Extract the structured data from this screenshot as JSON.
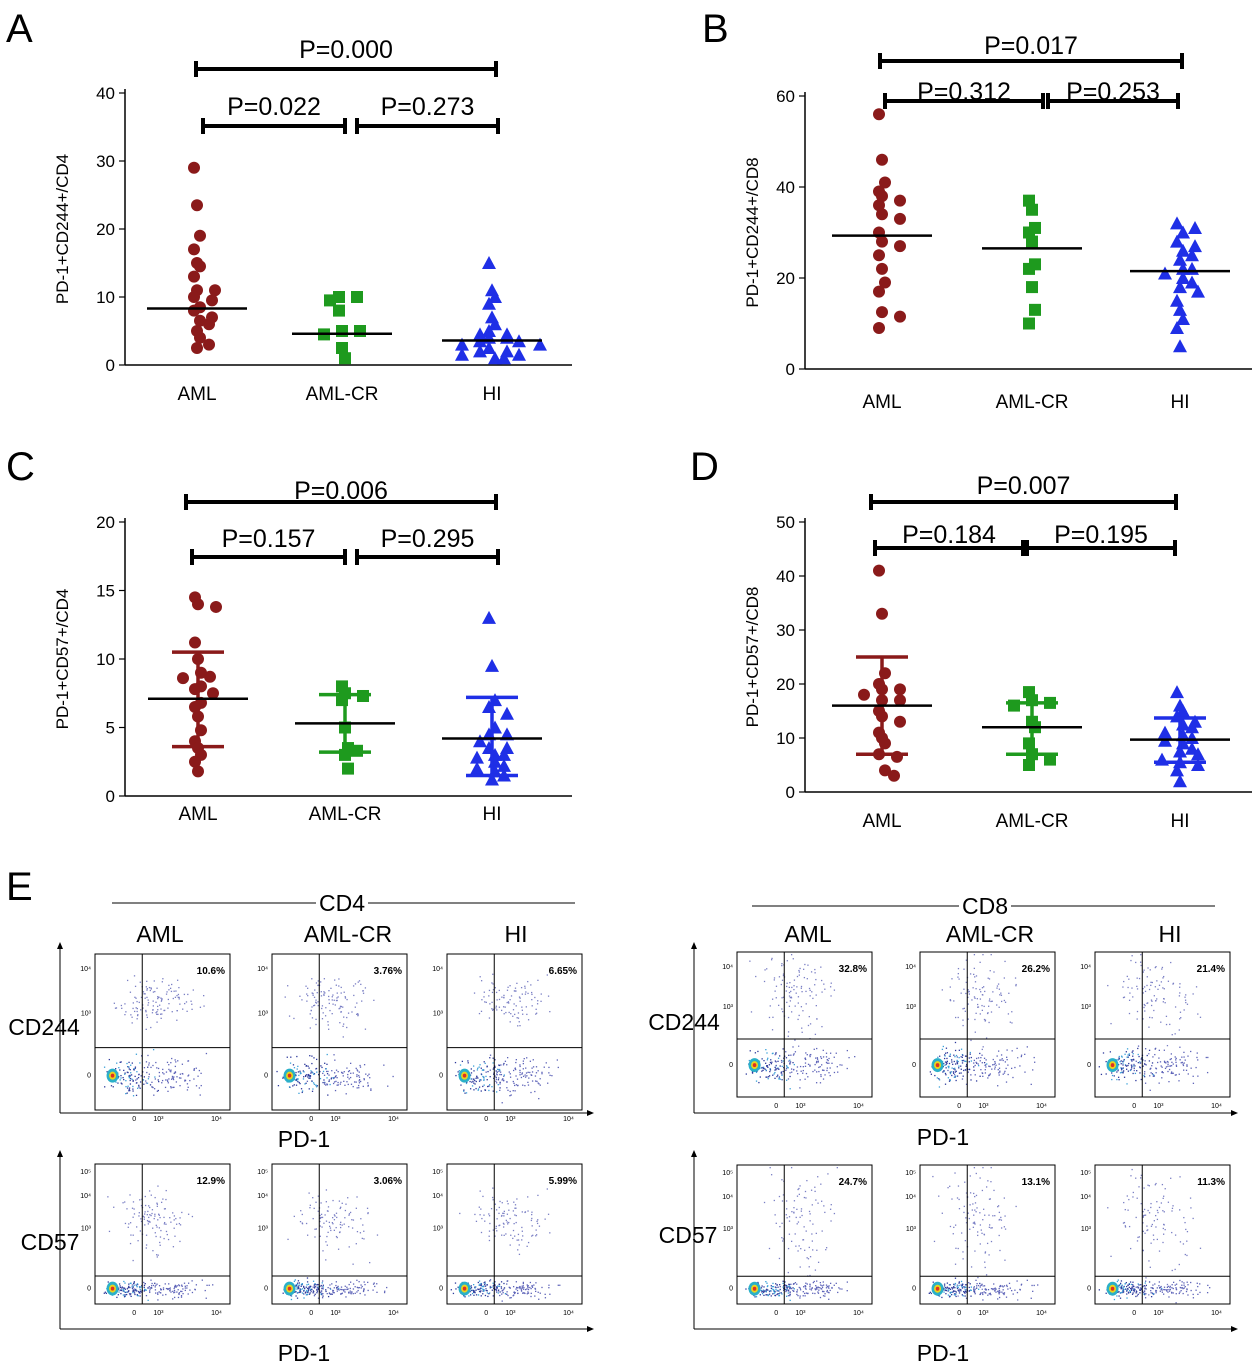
{
  "panel_labels": [
    "A",
    "B",
    "C",
    "D",
    "E"
  ],
  "chart_data": [
    {
      "panel": "A",
      "type": "scatter",
      "categories": [
        "AML",
        "AML-CR",
        "HI"
      ],
      "ylabel": "PD-1+CD244+/CD4",
      "ylim": [
        0,
        40
      ],
      "yticks": [
        "0",
        "10",
        "20",
        "30",
        "40"
      ],
      "series": [
        {
          "values": [
            29,
            23.5,
            19,
            17,
            15,
            14.5,
            13,
            11,
            11,
            10,
            9.5,
            8.5,
            8,
            7,
            6.5,
            6,
            5,
            4,
            3,
            2.5
          ]
        },
        {
          "values": [
            10,
            10,
            9.5,
            8,
            5,
            5,
            4.5,
            2.5,
            1
          ]
        },
        {
          "values": [
            15,
            11,
            10,
            9,
            7,
            6,
            5,
            4.5,
            4.5,
            4,
            4,
            3.5,
            3.5,
            3,
            3,
            2.5,
            2,
            2,
            1.5,
            1.5,
            1,
            1
          ]
        }
      ],
      "medians": [
        8.3,
        4.6,
        3.6
      ],
      "comparisons": [
        {
          "groups": [
            0,
            2
          ],
          "label": "P=0.000"
        },
        {
          "groups": [
            0,
            1
          ],
          "label": "P=0.022"
        },
        {
          "groups": [
            1,
            2
          ],
          "label": "P=0.273"
        }
      ]
    },
    {
      "panel": "B",
      "type": "scatter",
      "categories": [
        "AML",
        "AML-CR",
        "HI"
      ],
      "ylabel": "PD-1+CD244+/CD8",
      "ylim": [
        0,
        60
      ],
      "yticks": [
        "0",
        "20",
        "40",
        "60"
      ],
      "series": [
        {
          "values": [
            56,
            46,
            41,
            39,
            38,
            37,
            36,
            34,
            33,
            30,
            28,
            27,
            25,
            22,
            19,
            17,
            12.5,
            11.5,
            9
          ]
        },
        {
          "values": [
            37,
            35,
            31,
            30,
            28,
            23,
            22,
            18,
            13,
            10
          ]
        },
        {
          "values": [
            32,
            31,
            30,
            28,
            27,
            26,
            25,
            24,
            22,
            22,
            21,
            20,
            19,
            18,
            17,
            15,
            13,
            11,
            9,
            5
          ]
        }
      ],
      "medians": [
        29.3,
        26.5,
        21.5
      ],
      "comparisons": [
        {
          "groups": [
            0,
            2
          ],
          "label": "P=0.017"
        },
        {
          "groups": [
            0,
            1
          ],
          "label": "P=0.312"
        },
        {
          "groups": [
            1,
            2
          ],
          "label": "P=0.253"
        }
      ]
    },
    {
      "panel": "C",
      "type": "scatter",
      "categories": [
        "AML",
        "AML-CR",
        "HI"
      ],
      "ylabel": "PD-1+CD57+/CD4",
      "ylim": [
        0,
        20
      ],
      "yticks": [
        "0",
        "5",
        "10",
        "15",
        "20"
      ],
      "series": [
        {
          "values": [
            14.5,
            14,
            13.8,
            11.2,
            10,
            9,
            8.7,
            8.6,
            8,
            7.8,
            7.5,
            6.8,
            6.5,
            5.8,
            4.8,
            4,
            3.5,
            3,
            2.5,
            1.8
          ]
        },
        {
          "values": [
            8,
            7.5,
            7.3,
            7,
            5,
            3.5,
            3.3,
            3,
            2
          ]
        },
        {
          "values": [
            13,
            9.5,
            7,
            6.5,
            6,
            5,
            4.5,
            4.5,
            4,
            3.5,
            3.5,
            3,
            3,
            2.8,
            2.5,
            2.2,
            2,
            1.8,
            1.5,
            1.2
          ]
        }
      ],
      "medians": [
        7.1,
        5.3,
        4.2
      ],
      "error_bars": [
        [
          3.6,
          10.5
        ],
        [
          3.2,
          7.4
        ],
        [
          1.5,
          7.2
        ]
      ],
      "comparisons": [
        {
          "groups": [
            0,
            2
          ],
          "label": "P=0.006"
        },
        {
          "groups": [
            0,
            1
          ],
          "label": "P=0.157"
        },
        {
          "groups": [
            1,
            2
          ],
          "label": "P=0.295"
        }
      ]
    },
    {
      "panel": "D",
      "type": "scatter",
      "categories": [
        "AML",
        "AML-CR",
        "HI"
      ],
      "ylabel": "PD-1+CD57+/CD8",
      "ylim": [
        0,
        50
      ],
      "yticks": [
        "0",
        "10",
        "20",
        "30",
        "40",
        "50"
      ],
      "series": [
        {
          "values": [
            41,
            33,
            22,
            20,
            19,
            19,
            18,
            17,
            17,
            15,
            14,
            13,
            11,
            10,
            9,
            7,
            6.5,
            4,
            3
          ]
        },
        {
          "values": [
            18.5,
            17,
            16.5,
            16,
            13,
            12,
            9,
            7,
            6,
            5
          ]
        },
        {
          "values": [
            18.5,
            16,
            15,
            14,
            13,
            12.5,
            12,
            11,
            10.5,
            10,
            9.5,
            9,
            8,
            7.5,
            7,
            6,
            5.5,
            5,
            4,
            2
          ]
        }
      ],
      "medians": [
        16,
        12,
        9.7
      ],
      "error_bars": [
        [
          7,
          25
        ],
        [
          7,
          16.5
        ],
        [
          5.5,
          13.7
        ]
      ],
      "comparisons": [
        {
          "groups": [
            0,
            2
          ],
          "label": "P=0.007"
        },
        {
          "groups": [
            0,
            1
          ],
          "label": "P=0.184"
        },
        {
          "groups": [
            1,
            2
          ],
          "label": "P=0.195"
        }
      ]
    }
  ],
  "series_colors": [
    "#8a1a1a",
    "#1e9a1e",
    "#1f2fe6"
  ],
  "flow": {
    "groups": [
      {
        "title": "CD4",
        "subsets": [
          "AML",
          "AML-CR",
          "HI"
        ],
        "rows": [
          {
            "ylabel": "CD244",
            "xlabel": "PD-1",
            "y_ticks": [
              "10⁴",
              "10³",
              "0"
            ],
            "x_ticks": [
              "0",
              "10³",
              "10⁴"
            ],
            "percents": [
              "10.6%",
              "3.76%",
              "6.65%"
            ]
          },
          {
            "ylabel": "CD57",
            "xlabel": "PD-1",
            "y_ticks": [
              "10⁵",
              "10⁴",
              "10³",
              "0"
            ],
            "x_ticks": [
              "0",
              "10³",
              "10⁴"
            ],
            "percents": [
              "12.9%",
              "3.06%",
              "5.99%"
            ]
          }
        ]
      },
      {
        "title": "CD8",
        "subsets": [
          "AML",
          "AML-CR",
          "HI"
        ],
        "rows": [
          {
            "ylabel": "CD244",
            "xlabel": "PD-1",
            "y_ticks": [
              "10⁴",
              "10³",
              "0"
            ],
            "x_ticks": [
              "0",
              "10³",
              "10⁴"
            ],
            "percents": [
              "32.8%",
              "26.2%",
              "21.4%"
            ]
          },
          {
            "ylabel": "CD57",
            "xlabel": "PD-1",
            "y_ticks": [
              "10⁵",
              "10⁴",
              "10³",
              "0"
            ],
            "x_ticks": [
              "0",
              "10³",
              "10⁴"
            ],
            "percents": [
              "24.7%",
              "13.1%",
              "11.3%"
            ]
          }
        ]
      }
    ]
  }
}
